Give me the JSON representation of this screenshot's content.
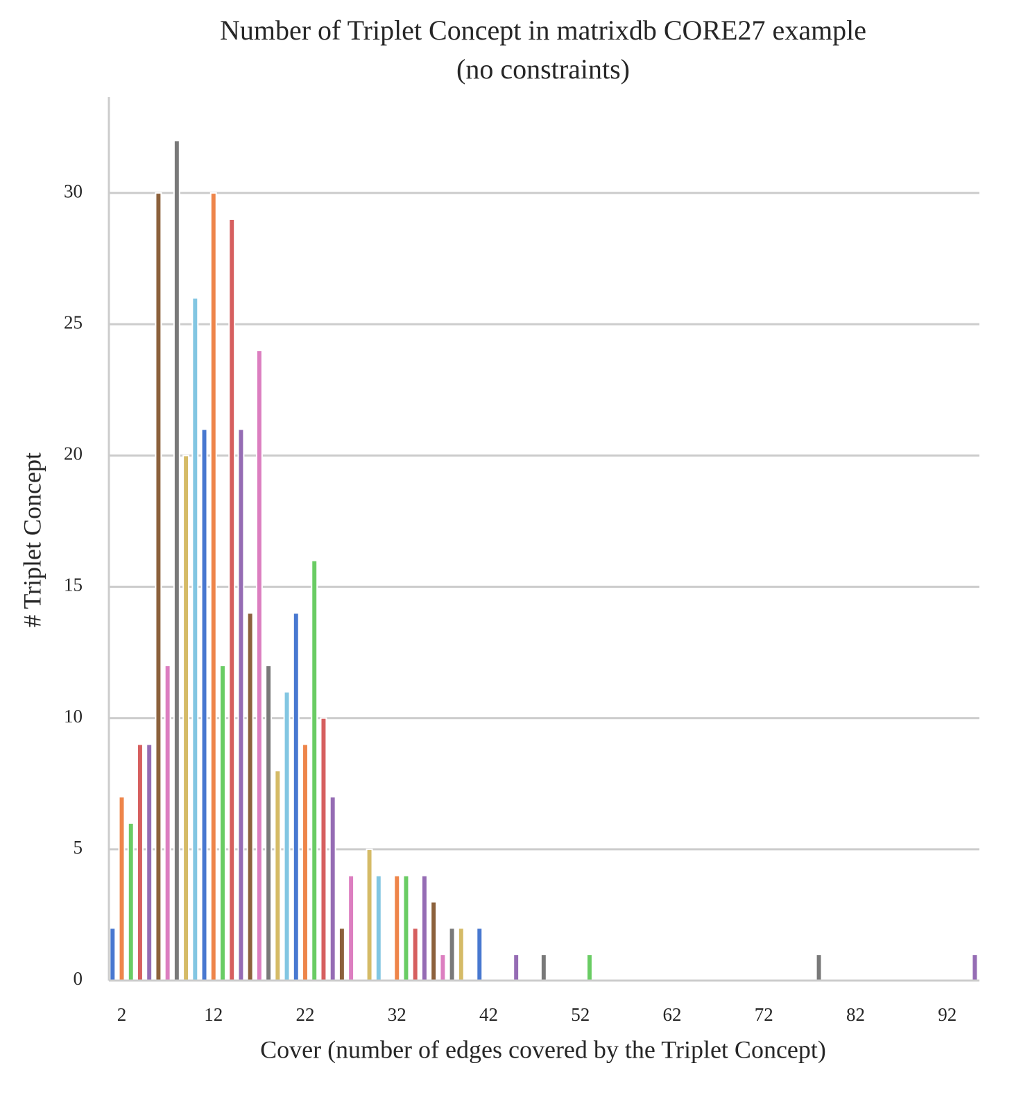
{
  "chart_data": {
    "type": "bar",
    "title": "Number of Triplet Concept in matrixdb CORE27 example",
    "subtitle": "(no constraints)",
    "x_label": "Cover (number of edges covered by the Triplet Concept)",
    "y_label": "# Triplet Concept",
    "x": [
      1,
      2,
      3,
      4,
      5,
      6,
      7,
      8,
      9,
      10,
      11,
      12,
      13,
      14,
      15,
      16,
      17,
      18,
      19,
      20,
      21,
      22,
      23,
      24,
      25,
      26,
      27,
      29,
      30,
      32,
      33,
      34,
      35,
      36,
      37,
      38,
      39,
      41,
      45,
      48,
      53,
      78,
      95
    ],
    "values": [
      2,
      7,
      6,
      9,
      9,
      30,
      12,
      32,
      20,
      26,
      21,
      30,
      12,
      29,
      21,
      14,
      24,
      12,
      8,
      11,
      14,
      9,
      16,
      10,
      7,
      2,
      4,
      5,
      4,
      4,
      4,
      2,
      4,
      3,
      1,
      2,
      2,
      2,
      1,
      1,
      1,
      1,
      1
    ],
    "colors": [
      "#4878d0",
      "#ee854a",
      "#6acc64",
      "#d65f5f",
      "#956cb4",
      "#8c613c",
      "#dc7ec0",
      "#797979",
      "#d5bb67",
      "#82c6e2",
      "#4878d0",
      "#ee854a",
      "#6acc64",
      "#d65f5f",
      "#956cb4",
      "#8c613c",
      "#dc7ec0",
      "#797979",
      "#d5bb67",
      "#82c6e2",
      "#4878d0",
      "#ee854a",
      "#6acc64",
      "#d65f5f",
      "#956cb4",
      "#8c613c",
      "#dc7ec0",
      "#d5bb67",
      "#82c6e2",
      "#ee854a",
      "#6acc64",
      "#d65f5f",
      "#956cb4",
      "#8c613c",
      "#dc7ec0",
      "#797979",
      "#d5bb67",
      "#4878d0",
      "#956cb4",
      "#797979",
      "#6acc64",
      "#797979",
      "#956cb4"
    ],
    "xlim": [
      0.6,
      95.5
    ],
    "ylim": [
      0,
      33.65
    ],
    "xticks": [
      2,
      12,
      22,
      32,
      42,
      52,
      62,
      72,
      82,
      92
    ],
    "yticks": [
      0,
      5,
      10,
      15,
      20,
      25,
      30
    ],
    "grid": true
  }
}
